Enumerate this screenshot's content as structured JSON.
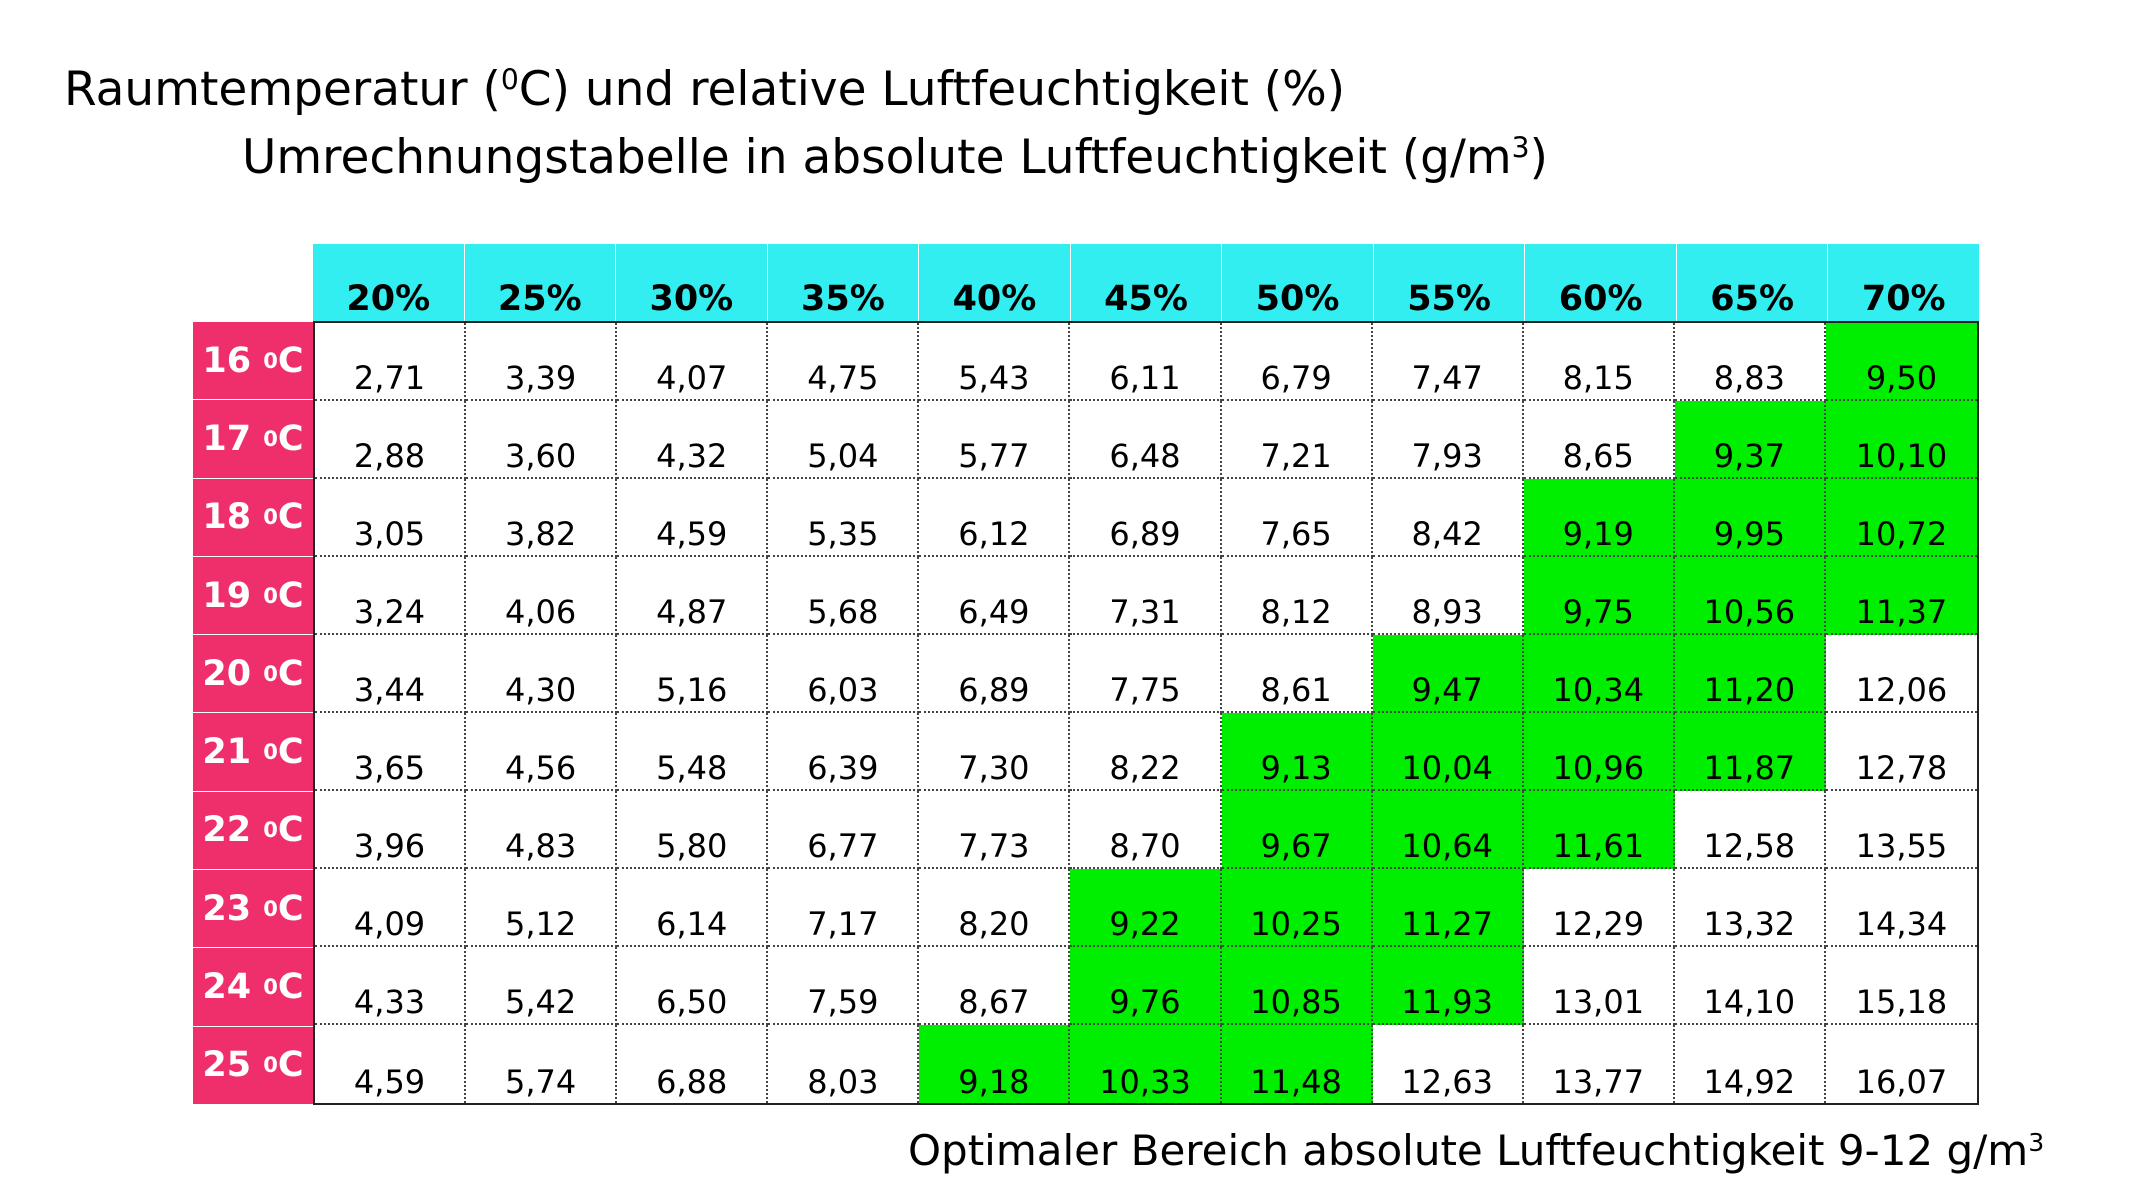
{
  "page": {
    "title_line1_prefix": "Raumtemperatur (",
    "title_line1_sup": "0",
    "title_line1_suffix": "C)  und relative Luftfeuchtigkeit (%)",
    "title_line2_prefix": "Umrechnungstabelle in absolute Luftfeuchtigkeit (g/m",
    "title_line2_sup": "3",
    "title_line2_suffix": ")",
    "footer_prefix": "Optimaler Bereich absolute Luftfeuchtigkeit 9-12 g/m",
    "footer_sup": "3"
  },
  "colors": {
    "header_bg": "#33eef0",
    "row_label_bg": "#ee2f6b",
    "optimal_bg": "#00ee00"
  },
  "chart_data": {
    "type": "table",
    "columns": [
      "20%",
      "25%",
      "30%",
      "35%",
      "40%",
      "45%",
      "50%",
      "55%",
      "60%",
      "65%",
      "70%"
    ],
    "rows": [
      {
        "label_num": "16",
        "label_sup": "0",
        "label_unit": "C",
        "values": [
          "2,71",
          "3,39",
          "4,07",
          "4,75",
          "5,43",
          "6,11",
          "6,79",
          "7,47",
          "8,15",
          "8,83",
          "9,50"
        ]
      },
      {
        "label_num": "17",
        "label_sup": "0",
        "label_unit": "C",
        "values": [
          "2,88",
          "3,60",
          "4,32",
          "5,04",
          "5,77",
          "6,48",
          "7,21",
          "7,93",
          "8,65",
          "9,37",
          "10,10"
        ]
      },
      {
        "label_num": "18",
        "label_sup": "0",
        "label_unit": "C",
        "values": [
          "3,05",
          "3,82",
          "4,59",
          "5,35",
          "6,12",
          "6,89",
          "7,65",
          "8,42",
          "9,19",
          "9,95",
          "10,72"
        ]
      },
      {
        "label_num": "19",
        "label_sup": "0",
        "label_unit": "C",
        "values": [
          "3,24",
          "4,06",
          "4,87",
          "5,68",
          "6,49",
          "7,31",
          "8,12",
          "8,93",
          "9,75",
          "10,56",
          "11,37"
        ]
      },
      {
        "label_num": "20",
        "label_sup": "0",
        "label_unit": "C",
        "values": [
          "3,44",
          "4,30",
          "5,16",
          "6,03",
          "6,89",
          "7,75",
          "8,61",
          "9,47",
          "10,34",
          "11,20",
          "12,06"
        ]
      },
      {
        "label_num": "21",
        "label_sup": "0",
        "label_unit": "C",
        "values": [
          "3,65",
          "4,56",
          "5,48",
          "6,39",
          "7,30",
          "8,22",
          "9,13",
          "10,04",
          "10,96",
          "11,87",
          "12,78"
        ]
      },
      {
        "label_num": "22",
        "label_sup": "0",
        "label_unit": "C",
        "values": [
          "3,96",
          "4,83",
          "5,80",
          "6,77",
          "7,73",
          "8,70",
          "9,67",
          "10,64",
          "11,61",
          "12,58",
          "13,55"
        ]
      },
      {
        "label_num": "23",
        "label_sup": "0",
        "label_unit": "C",
        "values": [
          "4,09",
          "5,12",
          "6,14",
          "7,17",
          "8,20",
          "9,22",
          "10,25",
          "11,27",
          "12,29",
          "13,32",
          "14,34"
        ]
      },
      {
        "label_num": "24",
        "label_sup": "0",
        "label_unit": "C",
        "values": [
          "4,33",
          "5,42",
          "6,50",
          "7,59",
          "8,67",
          "9,76",
          "10,85",
          "11,93",
          "13,01",
          "14,10",
          "15,18"
        ]
      },
      {
        "label_num": "25",
        "label_sup": "0",
        "label_unit": "C",
        "values": [
          "4,59",
          "5,74",
          "6,88",
          "8,03",
          "9,18",
          "10,33",
          "11,48",
          "12,63",
          "13,77",
          "14,92",
          "16,07"
        ]
      }
    ],
    "highlight_range": [
      9,
      12
    ]
  }
}
